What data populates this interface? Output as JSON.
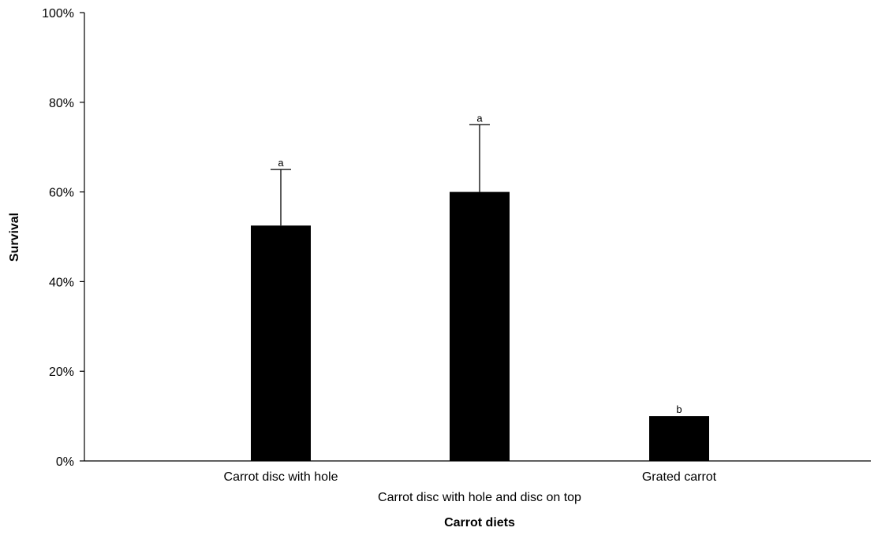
{
  "chart_data": {
    "type": "bar",
    "title": "",
    "xlabel": "Carrot diets",
    "ylabel": "Survival",
    "ylim": [
      0,
      100
    ],
    "y_ticks": [
      "0%",
      "20%",
      "40%",
      "60%",
      "80%",
      "100%"
    ],
    "y_tick_values": [
      0,
      20,
      40,
      60,
      80,
      100
    ],
    "categories": [
      "Carrot disc with hole",
      "Carrot disc with hole and disc on top",
      "Grated carrot"
    ],
    "values": [
      52.5,
      60,
      10
    ],
    "error_upper": [
      65,
      75,
      10
    ],
    "significance_labels": [
      "a",
      "a",
      "b"
    ],
    "grid": false,
    "legend": "none",
    "bar_color": "#000000"
  }
}
